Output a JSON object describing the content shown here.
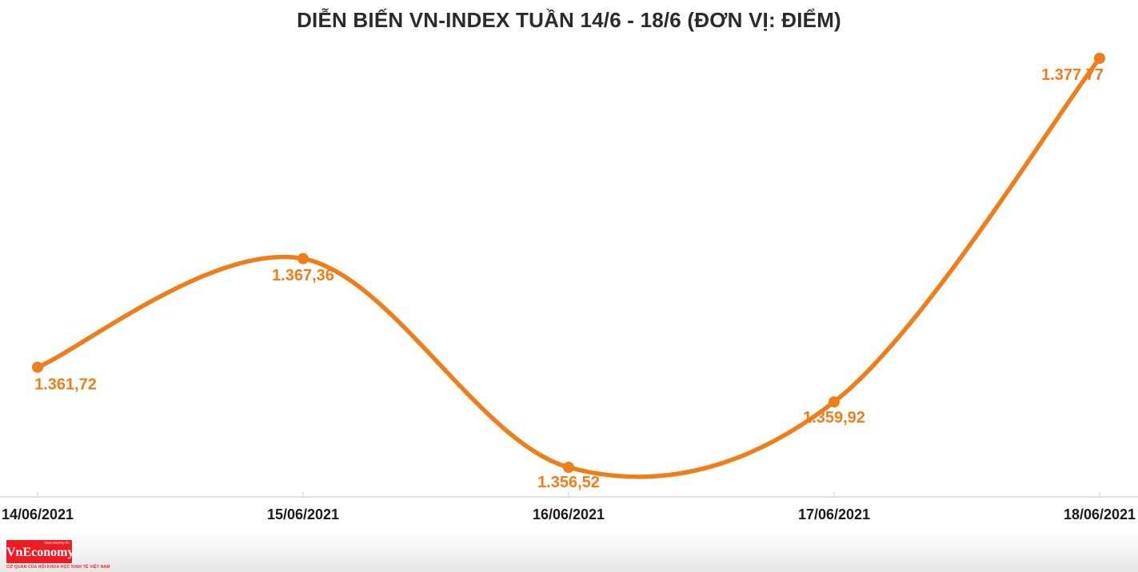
{
  "chart_data": {
    "type": "line",
    "title": "DIỄN BIẾN VN-INDEX TUẦN 14/6 - 18/6 (ĐƠN VỊ: ĐIỂM)",
    "categories": [
      "14/06/2021",
      "15/06/2021",
      "16/06/2021",
      "17/06/2021",
      "18/06/2021"
    ],
    "values": [
      1361.72,
      1367.36,
      1356.52,
      1359.92,
      1377.77
    ],
    "point_labels": [
      "1.361,72",
      "1.367,36",
      "1.356,52",
      "1.359,92",
      "1.377,77"
    ],
    "series_name": "VN-Index",
    "xlabel": "",
    "ylabel": "",
    "unit": "ĐIỂM",
    "ylim": [
      1356.52,
      1377.77
    ],
    "grid": false,
    "legend": false,
    "smooth": true
  },
  "colors": {
    "line": "#EE7D1A",
    "point": "#EE7D1A",
    "point_label": "#EE7D1A",
    "title_text": "#2b2b2b",
    "axis_line": "#DCDCDC",
    "axis_label": "#1a1a1a",
    "logo_red": "#ED1C24",
    "background": "#ffffff"
  },
  "logo": {
    "name": "VnEconomy",
    "tagline_top": "vneconomy.vn",
    "tagline_bottom": "CƠ QUAN CỦA HỘI KHOA HỌC KINH TẾ VIỆT NAM"
  }
}
